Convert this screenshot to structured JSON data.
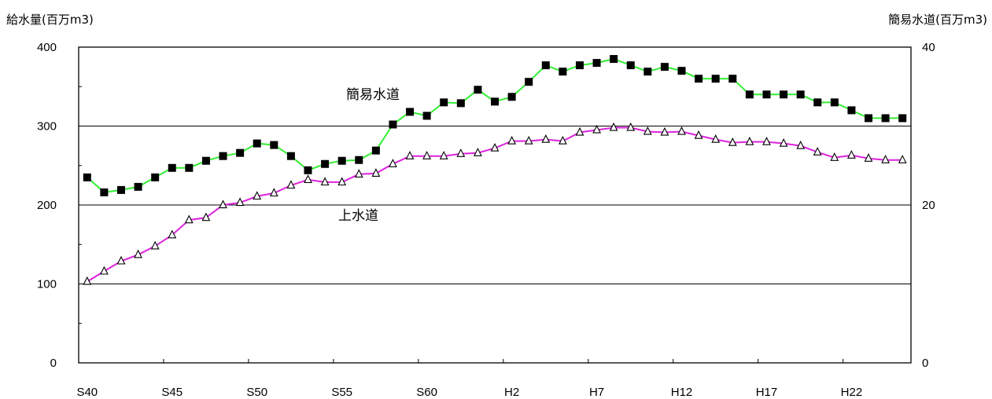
{
  "chart_data": {
    "type": "line",
    "title": "",
    "ylabel_left": "給水量(百万m3)",
    "ylabel_right": "簡易水道(百万m3)",
    "ylim_left": [
      0,
      400
    ],
    "ylim_right": [
      0,
      40
    ],
    "yticks_left": [
      "0",
      "100",
      "200",
      "300",
      "400"
    ],
    "yticks_right": [
      "0",
      "20",
      "40"
    ],
    "x_tick_labels": [
      "S40",
      "S45",
      "S50",
      "S55",
      "S60",
      "H2",
      "H7",
      "H12",
      "H17",
      "H22"
    ],
    "gridlines": [
      100,
      200,
      300
    ],
    "series": [
      {
        "name": "簡易水道",
        "axis": "right",
        "color": "#33ee33",
        "marker": "filled-square",
        "values": [
          23.5,
          21.6,
          21.9,
          22.3,
          23.5,
          24.7,
          24.7,
          25.6,
          26.2,
          26.6,
          27.8,
          27.6,
          26.2,
          24.4,
          25.2,
          25.6,
          25.7,
          26.9,
          30.2,
          31.8,
          31.3,
          33.0,
          32.9,
          34.6,
          33.1,
          33.7,
          35.6,
          37.7,
          36.9,
          37.7,
          38.0,
          38.5,
          37.7,
          36.9,
          37.5,
          37.0,
          36.0,
          36.0,
          36.0,
          34.0,
          34.0,
          34.0,
          34.0,
          33.0,
          33.0,
          32.0,
          31.0,
          31.0,
          31.0
        ]
      },
      {
        "name": "上水道",
        "axis": "left",
        "color": "#dd22dd",
        "marker": "hollow-triangle",
        "values": [
          103,
          116,
          129,
          137,
          148,
          162,
          181,
          184,
          200,
          203,
          211,
          215,
          225,
          232,
          229,
          229,
          239,
          240,
          252,
          262,
          262,
          262,
          265,
          266,
          272,
          281,
          281,
          283,
          281,
          292,
          295,
          298,
          298,
          293,
          292,
          293,
          288,
          283,
          279,
          280,
          280,
          278,
          275,
          267,
          260,
          263,
          259,
          257,
          257
        ]
      }
    ]
  }
}
